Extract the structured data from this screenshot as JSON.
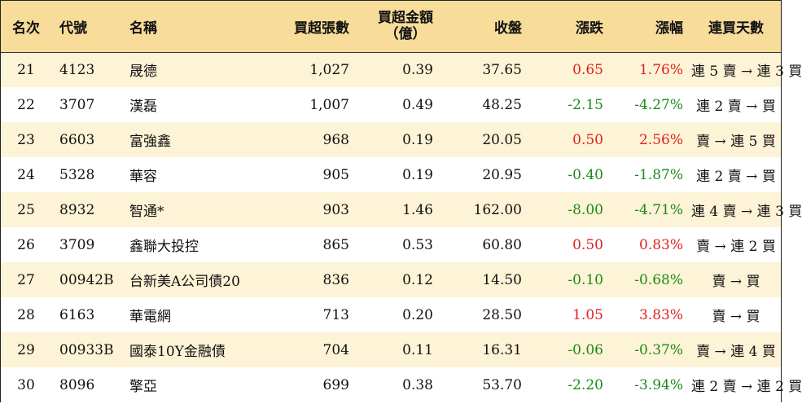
{
  "headers": {
    "rank": "名次",
    "code": "代號",
    "name": "名稱",
    "volume": "買超張數",
    "amount_line1": "買超金額",
    "amount_line2": "（億）",
    "close": "收盤",
    "change": "漲跌",
    "pct": "漲幅",
    "days": "連買天數"
  },
  "colors": {
    "header_bg": "#f7dc9a",
    "odd_row_bg": "#fdf3d6",
    "up": "#e02020",
    "down": "#1a8a1a"
  },
  "rows": [
    {
      "rank": "21",
      "code": "4123",
      "name": "晟德",
      "volume": "1,027",
      "amount": "0.39",
      "close": "37.65",
      "change": "0.65",
      "pct": "1.76%",
      "days": "連 5 賣 → 連 3 買",
      "dir": "up"
    },
    {
      "rank": "22",
      "code": "3707",
      "name": "漢磊",
      "volume": "1,007",
      "amount": "0.49",
      "close": "48.25",
      "change": "-2.15",
      "pct": "-4.27%",
      "days": "連 2 賣 → 買",
      "dir": "down"
    },
    {
      "rank": "23",
      "code": "6603",
      "name": "富強鑫",
      "volume": "968",
      "amount": "0.19",
      "close": "20.05",
      "change": "0.50",
      "pct": "2.56%",
      "days": "賣 → 連 5 買",
      "dir": "up"
    },
    {
      "rank": "24",
      "code": "5328",
      "name": "華容",
      "volume": "905",
      "amount": "0.19",
      "close": "20.95",
      "change": "-0.40",
      "pct": "-1.87%",
      "days": "連 2 賣 → 買",
      "dir": "down"
    },
    {
      "rank": "25",
      "code": "8932",
      "name": "智通*",
      "volume": "903",
      "amount": "1.46",
      "close": "162.00",
      "change": "-8.00",
      "pct": "-4.71%",
      "days": "連 4 賣 → 連 3 買",
      "dir": "down"
    },
    {
      "rank": "26",
      "code": "3709",
      "name": "鑫聯大投控",
      "volume": "865",
      "amount": "0.53",
      "close": "60.80",
      "change": "0.50",
      "pct": "0.83%",
      "days": "賣 → 連 2 買",
      "dir": "up"
    },
    {
      "rank": "27",
      "code": "00942B",
      "name": "台新美A公司債20",
      "volume": "836",
      "amount": "0.12",
      "close": "14.50",
      "change": "-0.10",
      "pct": "-0.68%",
      "days": "賣 → 買",
      "dir": "down"
    },
    {
      "rank": "28",
      "code": "6163",
      "name": "華電網",
      "volume": "713",
      "amount": "0.20",
      "close": "28.50",
      "change": "1.05",
      "pct": "3.83%",
      "days": "賣 → 買",
      "dir": "up"
    },
    {
      "rank": "29",
      "code": "00933B",
      "name": "國泰10Y金融債",
      "volume": "704",
      "amount": "0.11",
      "close": "16.31",
      "change": "-0.06",
      "pct": "-0.37%",
      "days": "賣 → 連 4 買",
      "dir": "down"
    },
    {
      "rank": "30",
      "code": "8096",
      "name": "擎亞",
      "volume": "699",
      "amount": "0.38",
      "close": "53.70",
      "change": "-2.20",
      "pct": "-3.94%",
      "days": "連 2 賣 → 連 2 買",
      "dir": "down"
    }
  ]
}
